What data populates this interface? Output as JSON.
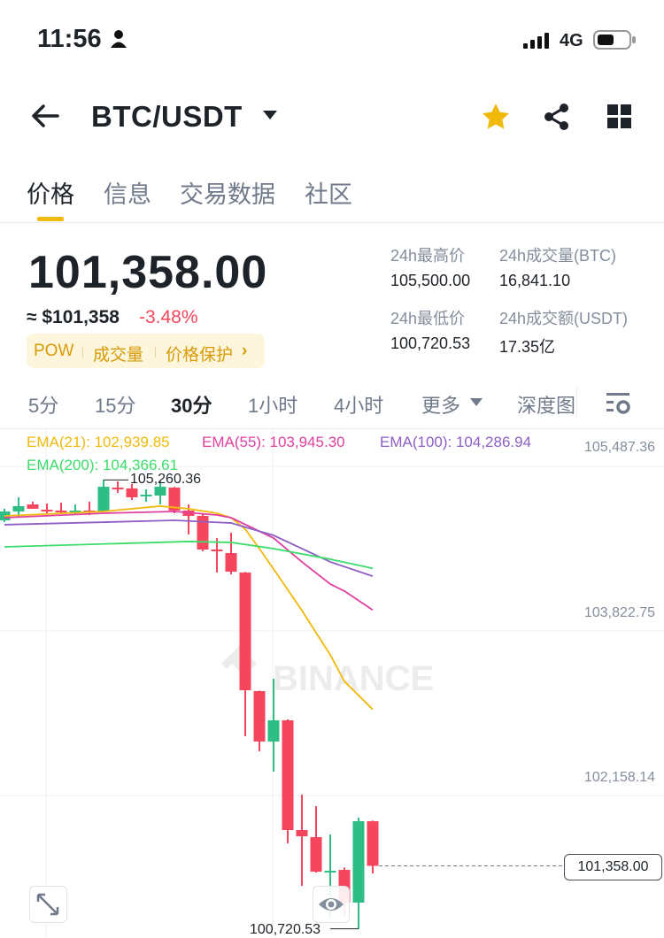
{
  "status": {
    "time": "11:56",
    "network": "4G",
    "icons": [
      "person-icon",
      "signal-icon",
      "battery-icon"
    ]
  },
  "header": {
    "title": "BTC/USDT",
    "icons": [
      "back-arrow-icon",
      "dropdown-caret-icon",
      "star-icon",
      "share-icon",
      "grid-icon"
    ],
    "star_color": "#f0b90b"
  },
  "tabs": [
    {
      "label": "价格",
      "active": true
    },
    {
      "label": "信息"
    },
    {
      "label": "交易数据"
    },
    {
      "label": "社区"
    }
  ],
  "price": {
    "last": "101,358.00",
    "usd": "≈ $101,358",
    "change": "-3.48%",
    "change_color": "#f6465d"
  },
  "tags": {
    "items": [
      "POW",
      "成交量",
      "价格保护"
    ],
    "arrow": "›"
  },
  "stats": {
    "high_label": "24h最高价",
    "high": "105,500.00",
    "vol_btc_label": "24h成交量(BTC)",
    "vol_btc": "16,841.10",
    "low_label": "24h最低价",
    "low": "100,720.53",
    "vol_usdt_label": "24h成交额(USDT)",
    "vol_usdt": "17.35亿"
  },
  "intervals": [
    {
      "label": "5分"
    },
    {
      "label": "15分"
    },
    {
      "label": "30分",
      "active": true
    },
    {
      "label": "1小时"
    },
    {
      "label": "4小时"
    },
    {
      "label": "更多"
    },
    {
      "label": "深度图"
    }
  ],
  "chart_data": {
    "type": "candlestick",
    "ylim": [
      100646,
      105774
    ],
    "y_ticks": [
      "105,487.36",
      "103,822.75",
      "102,158.14"
    ],
    "y_tick_values": [
      105487.36,
      103822.75,
      102158.14
    ],
    "colors": {
      "up": "#2ebd85",
      "down": "#f6465d"
    },
    "last_price": "101,358.00",
    "last_price_value": 101358,
    "high_marker": "105,260.36",
    "low_marker": "100,720.53",
    "watermark": "BINANCE",
    "ema_legend": [
      {
        "label": "EMA(21): 102,939.85",
        "color": "#f0b90b"
      },
      {
        "label": "EMA(55): 103,945.30",
        "color": "#e040a0"
      },
      {
        "label": "EMA(100): 104,286.94",
        "color": "#8e5fc4"
      },
      {
        "label": "EMA(200): 104,366.61",
        "color": "#3ddc6a"
      }
    ],
    "candles": [
      [
        104852,
        104969,
        104835,
        104942
      ],
      [
        104942,
        105085,
        104879,
        104996
      ],
      [
        105013,
        105040,
        104969,
        104969
      ],
      [
        104960,
        105022,
        104924,
        104942
      ],
      [
        104951,
        105031,
        104915,
        104942
      ],
      [
        104942,
        105013,
        104906,
        104951
      ],
      [
        104951,
        105040,
        104906,
        104942
      ],
      [
        104942,
        105260.36,
        104933,
        105192
      ],
      [
        105183,
        105246,
        105130,
        105175
      ],
      [
        105175,
        105220,
        105058,
        105085
      ],
      [
        105103,
        105166,
        105040,
        105112
      ],
      [
        105103,
        105250,
        105013,
        105192
      ],
      [
        105183,
        105190,
        104924,
        104951
      ],
      [
        104951,
        105013,
        104709,
        104897
      ],
      [
        104897,
        104920,
        104540,
        104557
      ],
      [
        104557,
        104673,
        104324,
        104548
      ],
      [
        104521,
        104727,
        104306,
        104333
      ],
      [
        104324,
        104330,
        102669,
        103134
      ],
      [
        103125,
        103130,
        102517,
        102615
      ],
      [
        102615,
        103250,
        102311,
        102830
      ],
      [
        102830,
        102840,
        101586,
        101720
      ],
      [
        101720,
        102078,
        101156,
        101657
      ],
      [
        101648,
        101961,
        101290,
        101299
      ],
      [
        101299,
        101675,
        100825,
        101308
      ],
      [
        101317,
        101340,
        100852,
        100986
      ],
      [
        100986,
        101845,
        100720.53,
        101809
      ],
      [
        101809,
        101815,
        101281,
        101358
      ]
    ],
    "ema": [
      {
        "name": "EMA(21)",
        "color": "#f0b90b",
        "points": [
          [
            0,
            104897
          ],
          [
            7,
            104942
          ],
          [
            11,
            104996
          ],
          [
            13,
            104969
          ],
          [
            15,
            104924
          ],
          [
            16,
            104879
          ],
          [
            17,
            104763
          ],
          [
            18,
            104566
          ],
          [
            19,
            104360
          ],
          [
            21,
            103940
          ],
          [
            23,
            103492
          ],
          [
            24,
            103224
          ],
          [
            26,
            102939.85
          ]
        ]
      },
      {
        "name": "EMA(55)",
        "color": "#e040a0",
        "points": [
          [
            0,
            104879
          ],
          [
            7,
            104924
          ],
          [
            12,
            104942
          ],
          [
            15,
            104906
          ],
          [
            16,
            104879
          ],
          [
            19,
            104673
          ],
          [
            21,
            104432
          ],
          [
            23,
            104208
          ],
          [
            24,
            104137
          ],
          [
            26,
            103945.3
          ]
        ]
      },
      {
        "name": "EMA(100)",
        "color": "#8e5fc4",
        "points": [
          [
            0,
            104808
          ],
          [
            12,
            104852
          ],
          [
            16,
            104825
          ],
          [
            19,
            104700
          ],
          [
            23,
            104432
          ],
          [
            26,
            104286.94
          ]
        ]
      },
      {
        "name": "EMA(200)",
        "color": "#3ddc6a",
        "points": [
          [
            0,
            104584
          ],
          [
            13,
            104638
          ],
          [
            16,
            104629
          ],
          [
            19,
            104566
          ],
          [
            23,
            104459
          ],
          [
            26,
            104366.61
          ]
        ]
      }
    ]
  }
}
